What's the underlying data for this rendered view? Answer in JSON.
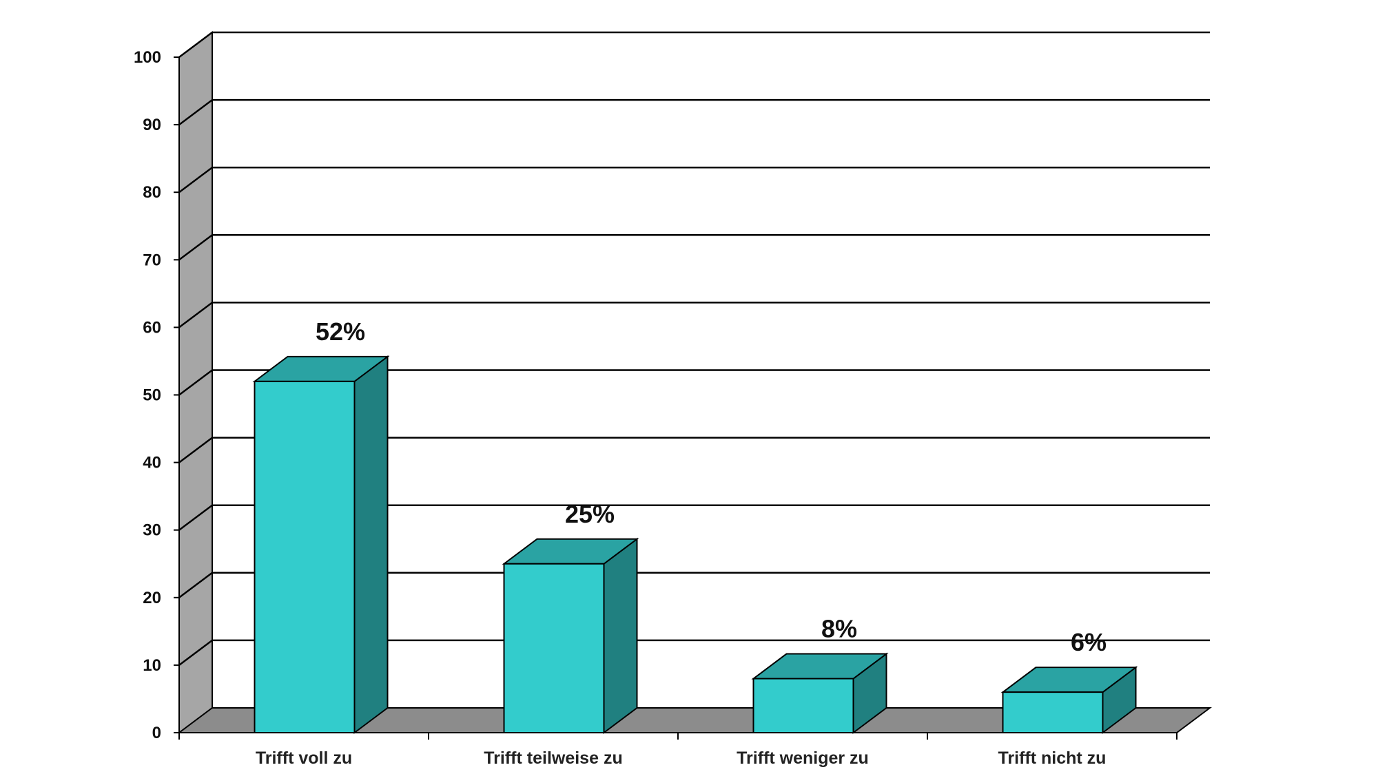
{
  "chart_data": {
    "type": "bar",
    "title": "",
    "xlabel": "",
    "ylabel": "",
    "categories": [
      "Trifft voll zu",
      "Trifft teilweise zu",
      "Trifft weniger zu",
      "Trifft nicht zu"
    ],
    "values": [
      52,
      25,
      8,
      6
    ],
    "value_labels": [
      "52%",
      "25%",
      "8%",
      "6%"
    ],
    "ylim": [
      0,
      100
    ],
    "yticks": [
      0,
      10,
      20,
      30,
      40,
      50,
      60,
      70,
      80,
      90,
      100
    ],
    "grid": true,
    "legend": "none",
    "style": "3d-column"
  },
  "colors": {
    "bar_front": "#33cccc",
    "bar_side": "#208080",
    "bar_top": "#2aa3a3",
    "side_wall": "#a6a6a6",
    "floor": "#8c8c8c",
    "gridline": "#000000"
  }
}
